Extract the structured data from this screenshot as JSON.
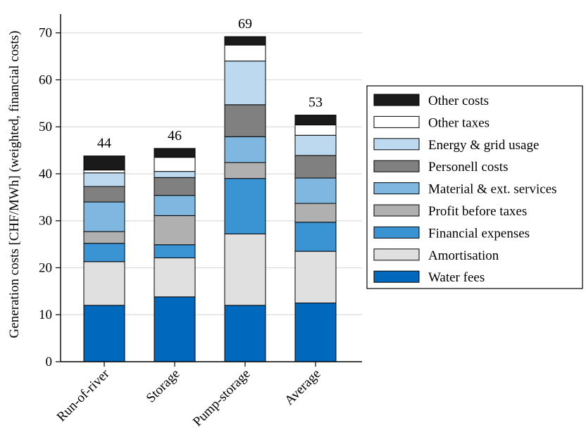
{
  "chart_data": {
    "type": "bar",
    "stacked": true,
    "title": "",
    "xlabel": "",
    "ylabel": "Generation costs [CHF/MWh] (weighted, financial costs)",
    "ylim": [
      0,
      74
    ],
    "yticks": [
      0,
      10,
      20,
      30,
      40,
      50,
      60,
      70
    ],
    "grid": "horizontal",
    "legend_position": "right",
    "categories": [
      "Run-of-river",
      "Storage",
      "Pump-storage",
      "Average"
    ],
    "totals": [
      "44",
      "46",
      "69",
      "53"
    ],
    "series": [
      {
        "name": "Water fees",
        "color": "#0069bd",
        "values": [
          12.0,
          13.8,
          12.0,
          12.5
        ]
      },
      {
        "name": "Amortisation",
        "color": "#e0e0e0",
        "values": [
          9.3,
          8.3,
          15.2,
          11.0
        ]
      },
      {
        "name": "Financial expenses",
        "color": "#3a93d3",
        "values": [
          3.9,
          2.8,
          11.8,
          6.2
        ]
      },
      {
        "name": "Profit before taxes",
        "color": "#b0b0b0",
        "values": [
          2.5,
          6.2,
          3.4,
          4.0
        ]
      },
      {
        "name": "Material & ext. services",
        "color": "#7fb7e1",
        "values": [
          6.3,
          4.3,
          5.5,
          5.4
        ]
      },
      {
        "name": "Personell costs",
        "color": "#808080",
        "values": [
          3.3,
          3.8,
          6.8,
          4.8
        ]
      },
      {
        "name": "Energy & grid usage",
        "color": "#bdd9f0",
        "values": [
          2.9,
          1.3,
          9.3,
          4.3
        ]
      },
      {
        "name": "Other taxes",
        "color": "#ffffff",
        "values": [
          0.6,
          3.0,
          3.4,
          2.2
        ]
      },
      {
        "name": "Other costs",
        "color": "#1a1a1a",
        "values": [
          3.0,
          1.9,
          1.8,
          2.1
        ]
      }
    ]
  }
}
